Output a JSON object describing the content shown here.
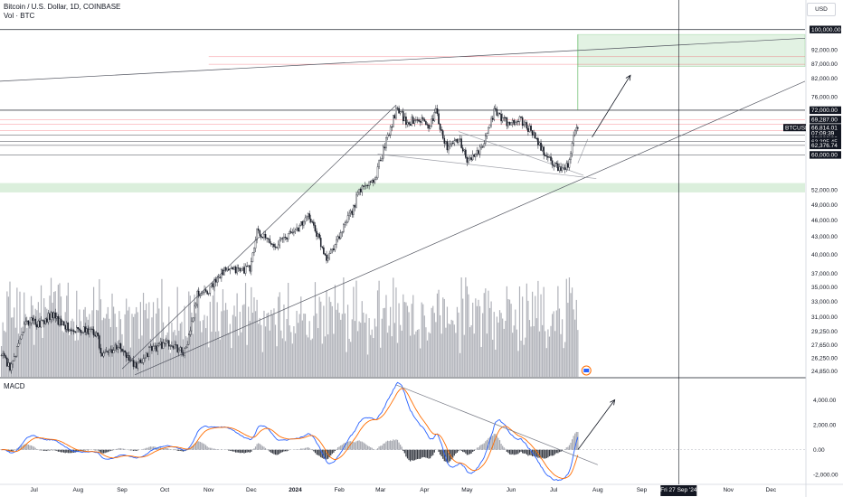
{
  "legend": {
    "title": "Bitcoin / U.S. Dollar, 1D, COINBASE",
    "volume_label": "Vol · BTC",
    "macd_label": "MACD"
  },
  "currency_button": "USD",
  "symbol_tag": {
    "symbol": "BTCUSD",
    "price": "66,814.01",
    "countdown": "07:09:39",
    "value": 66814
  },
  "crosshair_date_label": "Fri 27 Sep '24",
  "colors": {
    "up": "#131722",
    "down": "#131722",
    "volume": "#9598a1",
    "macd_line": "#2962ff",
    "signal_line": "#ff6d00",
    "hist_up": "#9598a1",
    "hist_down": "#131722",
    "support_zone": "#4caf50",
    "target_zone": "#4caf50",
    "hline_black": "#131722",
    "hline_red": "#f23645"
  },
  "chart_data": {
    "type": "candlestick",
    "title": "Bitcoin / U.S. Dollar, 1D, COINBASE",
    "price_axis": {
      "scale": "log",
      "range": [
        24300,
        104000
      ],
      "ticks": [
        {
          "label": "92,000.00",
          "value": 92000
        },
        {
          "label": "87,000.00",
          "value": 87000
        },
        {
          "label": "82,000.00",
          "value": 82000
        },
        {
          "label": "76,000.00",
          "value": 76000
        },
        {
          "label": "52,000.00",
          "value": 52000
        },
        {
          "label": "49,000.00",
          "value": 49000
        },
        {
          "label": "46,000.00",
          "value": 46000
        },
        {
          "label": "43,000.00",
          "value": 43000
        },
        {
          "label": "40,000.00",
          "value": 40000
        },
        {
          "label": "37,000.00",
          "value": 37000
        },
        {
          "label": "35,000.00",
          "value": 35000
        },
        {
          "label": "33,000.00",
          "value": 33000
        },
        {
          "label": "31,000.00",
          "value": 31000
        },
        {
          "label": "29,250.00",
          "value": 29250
        },
        {
          "label": "27,650.00",
          "value": 27650
        },
        {
          "label": "26,250.00",
          "value": 26250
        },
        {
          "label": "24,850.00",
          "value": 24850
        }
      ],
      "tags": [
        {
          "label": "100,000.00",
          "value": 100000
        },
        {
          "label": "72,000.00",
          "value": 72000
        },
        {
          "label": "69,287.00",
          "value": 69287
        },
        {
          "label": "66,238.23",
          "value": 66238
        },
        {
          "label": "65,000.00",
          "value": 65000
        },
        {
          "label": "63,395.45",
          "value": 63395
        },
        {
          "label": "62,376.74",
          "value": 62376
        },
        {
          "label": "60,000.00",
          "value": 60000
        }
      ]
    },
    "time_axis": {
      "range": [
        "2023-06-07",
        "2024-12-25"
      ],
      "ticks": [
        {
          "label": "Jul",
          "date": "2023-07-01"
        },
        {
          "label": "Aug",
          "date": "2023-08-01"
        },
        {
          "label": "Sep",
          "date": "2023-09-01"
        },
        {
          "label": "Oct",
          "date": "2023-10-01"
        },
        {
          "label": "Nov",
          "date": "2023-11-01"
        },
        {
          "label": "Dec",
          "date": "2023-12-01"
        },
        {
          "label": "2024",
          "date": "2024-01-01"
        },
        {
          "label": "Feb",
          "date": "2024-02-01"
        },
        {
          "label": "Mar",
          "date": "2024-03-01"
        },
        {
          "label": "Apr",
          "date": "2024-04-01"
        },
        {
          "label": "May",
          "date": "2024-05-01"
        },
        {
          "label": "Jun",
          "date": "2024-06-01"
        },
        {
          "label": "Jul",
          "date": "2024-07-01"
        },
        {
          "label": "Aug",
          "date": "2024-08-01"
        },
        {
          "label": "Sep",
          "date": "2024-09-01"
        },
        {
          "label": "Nov",
          "date": "2024-11-01"
        },
        {
          "label": "Dec",
          "date": "2024-12-01"
        }
      ],
      "crosshair_date": "2024-09-27"
    },
    "price_anchors": [
      {
        "date": "2023-06-08",
        "close": 26500
      },
      {
        "date": "2023-06-15",
        "close": 25200
      },
      {
        "date": "2023-06-21",
        "close": 28300
      },
      {
        "date": "2023-06-25",
        "close": 30500
      },
      {
        "date": "2023-07-05",
        "close": 30200
      },
      {
        "date": "2023-07-13",
        "close": 31300
      },
      {
        "date": "2023-07-23",
        "close": 29900
      },
      {
        "date": "2023-08-01",
        "close": 29400
      },
      {
        "date": "2023-08-15",
        "close": 29100
      },
      {
        "date": "2023-08-17",
        "close": 26400
      },
      {
        "date": "2023-08-29",
        "close": 27600
      },
      {
        "date": "2023-09-11",
        "close": 25200
      },
      {
        "date": "2023-09-20",
        "close": 27000
      },
      {
        "date": "2023-10-01",
        "close": 27900
      },
      {
        "date": "2023-10-15",
        "close": 26900
      },
      {
        "date": "2023-10-18",
        "close": 28500
      },
      {
        "date": "2023-10-24",
        "close": 33900
      },
      {
        "date": "2023-11-01",
        "close": 34600
      },
      {
        "date": "2023-11-10",
        "close": 37300
      },
      {
        "date": "2023-11-30",
        "close": 37700
      },
      {
        "date": "2023-12-05",
        "close": 43800
      },
      {
        "date": "2023-12-17",
        "close": 41400
      },
      {
        "date": "2024-01-01",
        "close": 44200
      },
      {
        "date": "2024-01-11",
        "close": 46700
      },
      {
        "date": "2024-01-23",
        "close": 39500
      },
      {
        "date": "2024-02-01",
        "close": 43000
      },
      {
        "date": "2024-02-10",
        "close": 47700
      },
      {
        "date": "2024-02-15",
        "close": 51800
      },
      {
        "date": "2024-02-26",
        "close": 54500
      },
      {
        "date": "2024-03-05",
        "close": 63800
      },
      {
        "date": "2024-03-13",
        "close": 73100
      },
      {
        "date": "2024-03-20",
        "close": 67800
      },
      {
        "date": "2024-03-26",
        "close": 70000
      },
      {
        "date": "2024-04-05",
        "close": 67800
      },
      {
        "date": "2024-04-09",
        "close": 71600
      },
      {
        "date": "2024-04-17",
        "close": 61300
      },
      {
        "date": "2024-04-25",
        "close": 64500
      },
      {
        "date": "2024-05-01",
        "close": 58300
      },
      {
        "date": "2024-05-10",
        "close": 61000
      },
      {
        "date": "2024-05-20",
        "close": 71400
      },
      {
        "date": "2024-06-01",
        "close": 67700
      },
      {
        "date": "2024-06-07",
        "close": 69300
      },
      {
        "date": "2024-06-15",
        "close": 66200
      },
      {
        "date": "2024-06-24",
        "close": 60300
      },
      {
        "date": "2024-07-05",
        "close": 56600
      },
      {
        "date": "2024-07-12",
        "close": 57900
      },
      {
        "date": "2024-07-15",
        "close": 64800
      },
      {
        "date": "2024-07-18",
        "close": 66814
      }
    ],
    "volume_pane": {
      "label": "Vol · BTC"
    },
    "macd_pane": {
      "label": "MACD",
      "range": [
        -2700,
        5700
      ],
      "ticks": [
        {
          "label": "4,000.00",
          "value": 4000
        },
        {
          "label": "2,000.00",
          "value": 2000
        },
        {
          "label": "0.00",
          "value": 0
        },
        {
          "label": "-2,000.00",
          "value": -2000
        }
      ]
    },
    "zones": [
      {
        "name": "support-zone",
        "from_date": "2023-06-07",
        "to_date": "2024-12-25",
        "low": 51500,
        "high": 53500
      },
      {
        "name": "target-zone",
        "from_date": "2024-07-18",
        "to_date": "2024-12-25",
        "low": 86000,
        "high": 98000
      }
    ],
    "horizontal_lines": [
      {
        "value": 100000,
        "color": "black"
      },
      {
        "value": 72000,
        "color": "black"
      },
      {
        "value": 69287,
        "color": "red"
      },
      {
        "value": 68000,
        "color": "red"
      },
      {
        "value": 66238,
        "color": "red"
      },
      {
        "value": 65000,
        "color": "black"
      },
      {
        "value": 63395,
        "color": "black"
      },
      {
        "value": 62376,
        "color": "black"
      },
      {
        "value": 60000,
        "color": "black"
      },
      {
        "value": 89500,
        "color": "red"
      },
      {
        "value": 86800,
        "color": "red"
      }
    ],
    "trend_lines": [
      {
        "from": {
          "date": "2023-06-07",
          "value": 81000
        },
        "to": {
          "date": "2024-12-25",
          "value": 96500
        }
      },
      {
        "from": {
          "date": "2023-09-10",
          "value": 24500
        },
        "to": {
          "date": "2024-12-25",
          "value": 81000
        }
      },
      {
        "from": {
          "date": "2023-09-01",
          "value": 25100
        },
        "to": {
          "date": "2024-03-12",
          "value": 73500
        }
      },
      {
        "from": {
          "date": "2024-02-28",
          "value": 60200
        },
        "to": {
          "date": "2024-07-31",
          "value": 54500
        }
      },
      {
        "from": {
          "date": "2024-04-25",
          "value": 66000
        },
        "to": {
          "date": "2024-07-22",
          "value": 55200
        }
      },
      {
        "from": {
          "date": "2024-07-18",
          "value": 58000
        },
        "to": {
          "date": "2024-07-25",
          "value": 64000
        }
      }
    ],
    "arrows": [
      {
        "pane": "price",
        "from": {
          "date": "2024-07-28",
          "value": 64500
        },
        "to": {
          "date": "2024-08-24",
          "value": 83000
        }
      },
      {
        "pane": "macd",
        "from": {
          "date": "2024-07-18",
          "value": 0
        },
        "to": {
          "date": "2024-08-13",
          "value": 4000
        }
      }
    ],
    "macd_trend_line": {
      "from": {
        "date": "2024-03-12",
        "value": 5200
      },
      "to": {
        "date": "2024-08-01",
        "value": -1200
      }
    },
    "grid": false
  }
}
